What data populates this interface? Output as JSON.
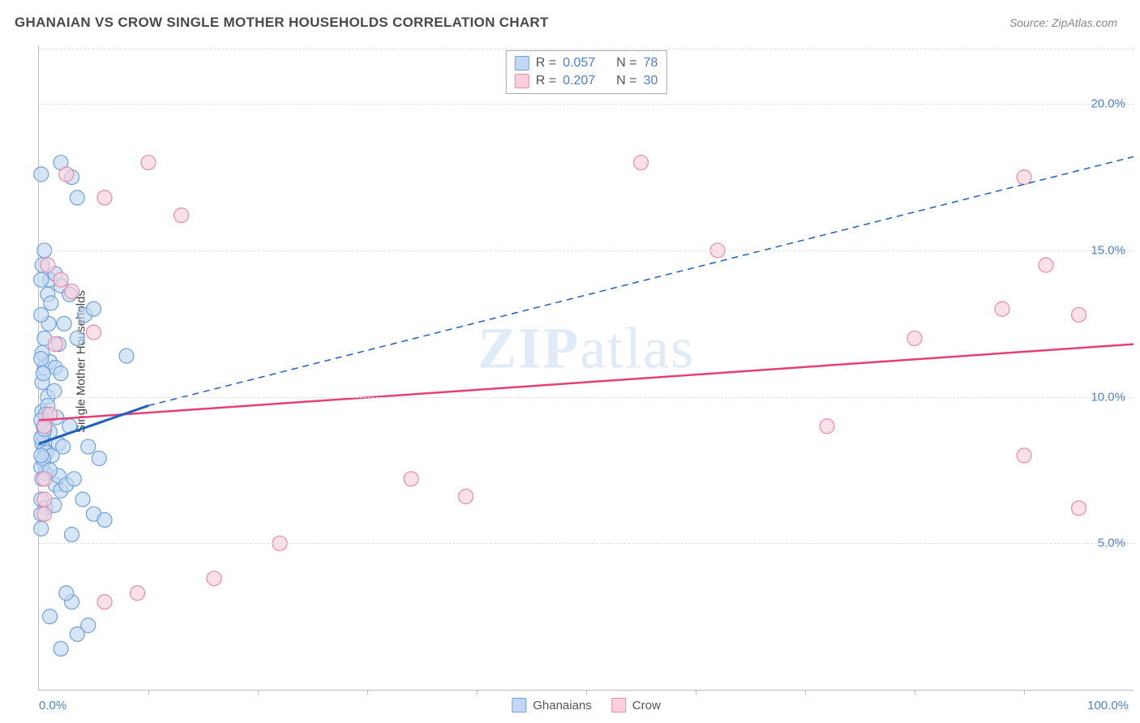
{
  "header": {
    "title": "GHANAIAN VS CROW SINGLE MOTHER HOUSEHOLDS CORRELATION CHART",
    "source_prefix": "Source: ",
    "source": "ZipAtlas.com"
  },
  "chart": {
    "ylabel": "Single Mother Households",
    "xlim": [
      0,
      100
    ],
    "ylim": [
      0,
      22
    ],
    "xlabel_start": "0.0%",
    "xlabel_end": "100.0%",
    "y_ticks": [
      5.0,
      10.0,
      15.0,
      20.0
    ],
    "y_tick_labels": [
      "5.0%",
      "10.0%",
      "15.0%",
      "20.0%"
    ],
    "x_tick_positions": [
      10,
      20,
      30,
      40,
      50,
      60,
      70,
      80,
      90
    ],
    "grid_color": "#e0e0e0",
    "axis_color": "#bbbbbb",
    "background_color": "#ffffff",
    "tick_label_color": "#4a7fd8",
    "series": {
      "ghanaians": {
        "label": "Ghanaians",
        "fill_color": "#c2d8f2",
        "stroke_color": "#6fa0db",
        "line_color": "#1f5fbf",
        "marker_radius": 9,
        "marker_opacity": 0.65,
        "R_label": "R =",
        "R": "0.057",
        "N_label": "N =",
        "N": "78",
        "trend_solid": {
          "x1": 0,
          "y1": 8.4,
          "x2": 10,
          "y2": 9.7
        },
        "trend_dashed": {
          "x1": 10,
          "y1": 9.7,
          "x2": 100,
          "y2": 18.2
        },
        "points": [
          [
            0.3,
            8.4
          ],
          [
            0.5,
            8.2
          ],
          [
            0.7,
            8.1
          ],
          [
            0.4,
            7.8
          ],
          [
            1.2,
            8.0
          ],
          [
            0.6,
            7.4
          ],
          [
            1.5,
            7.0
          ],
          [
            2.0,
            6.8
          ],
          [
            1.8,
            7.3
          ],
          [
            2.5,
            7.0
          ],
          [
            3.2,
            7.2
          ],
          [
            4.0,
            6.5
          ],
          [
            5.0,
            6.0
          ],
          [
            6.0,
            5.8
          ],
          [
            3.0,
            3.0
          ],
          [
            2.5,
            3.3
          ],
          [
            4.5,
            2.2
          ],
          [
            3.5,
            1.9
          ],
          [
            2.0,
            1.4
          ],
          [
            1.0,
            2.5
          ],
          [
            0.5,
            11.0
          ],
          [
            1.0,
            11.2
          ],
          [
            1.5,
            11.0
          ],
          [
            2.0,
            10.8
          ],
          [
            0.8,
            10.0
          ],
          [
            1.4,
            10.2
          ],
          [
            2.3,
            12.5
          ],
          [
            3.5,
            12.0
          ],
          [
            4.2,
            12.8
          ],
          [
            5.0,
            13.0
          ],
          [
            2.0,
            13.8
          ],
          [
            1.0,
            14.0
          ],
          [
            0.5,
            15.0
          ],
          [
            2.0,
            18.0
          ],
          [
            3.0,
            17.5
          ],
          [
            3.5,
            16.8
          ],
          [
            8.0,
            11.4
          ],
          [
            1.0,
            8.8
          ],
          [
            0.4,
            9.0
          ],
          [
            0.3,
            9.5
          ],
          [
            0.8,
            9.7
          ],
          [
            1.6,
            9.3
          ],
          [
            2.8,
            9.0
          ],
          [
            0.2,
            6.5
          ],
          [
            0.6,
            6.2
          ],
          [
            1.4,
            6.3
          ],
          [
            0.3,
            14.5
          ],
          [
            0.8,
            13.5
          ],
          [
            1.5,
            14.2
          ],
          [
            0.5,
            12.0
          ],
          [
            1.8,
            11.8
          ],
          [
            0.3,
            10.5
          ],
          [
            0.2,
            7.6
          ],
          [
            0.4,
            7.9
          ],
          [
            1.0,
            7.5
          ],
          [
            1.8,
            8.4
          ],
          [
            2.2,
            8.3
          ],
          [
            0.4,
            8.7
          ],
          [
            0.2,
            8.0
          ],
          [
            0.6,
            9.4
          ],
          [
            0.3,
            11.5
          ],
          [
            0.9,
            12.5
          ],
          [
            0.2,
            17.6
          ],
          [
            4.5,
            8.3
          ],
          [
            5.5,
            7.9
          ],
          [
            0.2,
            5.5
          ],
          [
            3.0,
            5.3
          ],
          [
            0.2,
            9.2
          ],
          [
            0.4,
            10.8
          ],
          [
            1.1,
            13.2
          ],
          [
            2.8,
            13.5
          ],
          [
            0.2,
            12.8
          ],
          [
            0.2,
            8.6
          ],
          [
            0.3,
            7.2
          ],
          [
            0.5,
            8.9
          ],
          [
            0.2,
            14.0
          ],
          [
            0.2,
            6.0
          ],
          [
            0.2,
            11.3
          ]
        ]
      },
      "crow": {
        "label": "Crow",
        "fill_color": "#f8d1dc",
        "stroke_color": "#e88aa7",
        "line_color": "#e53f7a",
        "marker_radius": 9,
        "marker_opacity": 0.65,
        "R_label": "R =",
        "R": "0.207",
        "N_label": "N =",
        "N": "30",
        "trend_solid": {
          "x1": 0,
          "y1": 9.2,
          "x2": 100,
          "y2": 11.8
        },
        "trend_dashed": null,
        "points": [
          [
            55,
            18.0
          ],
          [
            10,
            18.0
          ],
          [
            2.5,
            17.6
          ],
          [
            6.0,
            16.8
          ],
          [
            3.0,
            13.6
          ],
          [
            2.0,
            14.0
          ],
          [
            62,
            15.0
          ],
          [
            90,
            17.5
          ],
          [
            92,
            14.5
          ],
          [
            88,
            13.0
          ],
          [
            80,
            12.0
          ],
          [
            72,
            9.0
          ],
          [
            90,
            8.0
          ],
          [
            95,
            12.8
          ],
          [
            95,
            6.2
          ],
          [
            34,
            7.2
          ],
          [
            39,
            6.6
          ],
          [
            22,
            5.0
          ],
          [
            16,
            3.8
          ],
          [
            9,
            3.3
          ],
          [
            6,
            3.0
          ],
          [
            0.8,
            14.5
          ],
          [
            1.5,
            11.8
          ],
          [
            5,
            12.2
          ],
          [
            1.0,
            9.4
          ],
          [
            0.5,
            7.2
          ],
          [
            0.5,
            6.5
          ],
          [
            0.5,
            9.0
          ],
          [
            0.5,
            6.0
          ],
          [
            13,
            16.2
          ]
        ]
      }
    },
    "watermark": "ZIPatlas"
  }
}
